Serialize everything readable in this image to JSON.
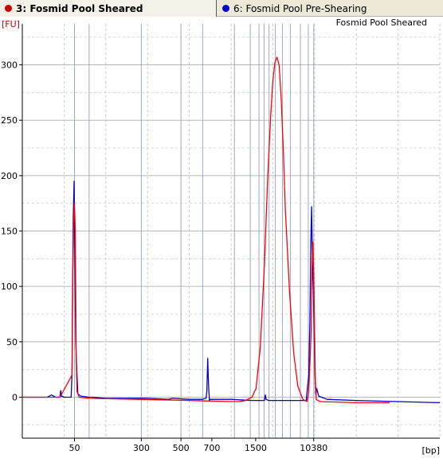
{
  "tabs": [
    {
      "label": "3: Fosmid Pool Sheared",
      "color": "#cc0000",
      "active": true
    },
    {
      "label": "6: Fosmid Pool Pre-Shearing",
      "color": "#0000cc",
      "active": false
    }
  ],
  "chart_data": {
    "type": "line",
    "title": "Fosmid Pool Sheared",
    "ylabel": "[FU]",
    "xlabel": "[bp]",
    "ylim": [
      -37,
      337
    ],
    "xlim": [
      0,
      100
    ],
    "y_ticks": [
      0,
      50,
      100,
      150,
      200,
      250,
      300
    ],
    "x_tick_labels": [
      {
        "x": 12.5,
        "label": "50"
      },
      {
        "x": 28.5,
        "label": "300"
      },
      {
        "x": 38.0,
        "label": "500"
      },
      {
        "x": 45.4,
        "label": "700"
      },
      {
        "x": 55.9,
        "label": "1500"
      },
      {
        "x": 69.8,
        "label": "10380"
      }
    ],
    "ladder_lines": [
      12.5,
      16.0,
      28.5,
      38.0,
      43.2,
      50.8,
      54.6,
      56.7,
      57.9,
      59.1,
      60.6,
      62.3,
      64.2,
      66.6,
      68.5,
      69.8
    ],
    "grid": true,
    "series": [
      {
        "name": "3: Fosmid Pool Sheared",
        "color": "#ff0000",
        "x": [
          0,
          9,
          11.9,
          12.1,
          12.3,
          12.5,
          12.7,
          12.9,
          13.1,
          13.6,
          16,
          28,
          40,
          50,
          52,
          53.5,
          55,
          56,
          57,
          58,
          58.8,
          59.5,
          60,
          60.5,
          61,
          61.5,
          62,
          62.5,
          63,
          64,
          65,
          66,
          67.2,
          68.2,
          68.6,
          69.2,
          69.4,
          69.6,
          69.8,
          70.0,
          70.2,
          70.4,
          70.8,
          71.5,
          80,
          88
        ],
        "y": [
          0,
          0,
          20,
          110,
          160,
          175,
          150,
          40,
          5,
          0,
          -1,
          -2,
          -3,
          -4,
          -4,
          -3,
          0,
          8,
          45,
          120,
          200,
          255,
          285,
          302,
          307,
          300,
          270,
          225,
          170,
          95,
          40,
          10,
          -2,
          -4,
          5,
          60,
          120,
          140,
          110,
          60,
          15,
          -2,
          -3,
          -4,
          -5,
          -5
        ]
      },
      {
        "name": "6: Fosmid Pool Pre-Shearing",
        "color": "#0000cc",
        "x": [
          0,
          6,
          7,
          8,
          9,
          9.2,
          9.4,
          10,
          11.7,
          11.9,
          12.0,
          12.2,
          12.4,
          12.6,
          12.8,
          13.0,
          13.3,
          14,
          16,
          17,
          20,
          30,
          35,
          36,
          40,
          43,
          44,
          44.2,
          44.4,
          44.6,
          44.8,
          45,
          47,
          50,
          55,
          57,
          58,
          58.2,
          58.4,
          59,
          65,
          68,
          68.6,
          68.9,
          69.1,
          69.3,
          69.5,
          69.7,
          69.9,
          70.1,
          70.3,
          70.5,
          71,
          73,
          80,
          90,
          100
        ],
        "y": [
          0,
          0,
          2,
          0,
          0,
          6,
          1,
          0,
          0,
          22,
          80,
          160,
          195,
          120,
          50,
          30,
          3,
          1,
          0,
          0,
          -1,
          -1,
          -2,
          -1,
          -2,
          -2,
          -1,
          5,
          35,
          12,
          -3,
          -2,
          -2,
          -2,
          -3,
          -3,
          -3,
          2,
          -2,
          -3,
          -3,
          -3,
          20,
          70,
          140,
          172,
          120,
          100,
          60,
          20,
          2,
          8,
          1,
          -2,
          -3,
          -4,
          -5
        ]
      }
    ]
  }
}
